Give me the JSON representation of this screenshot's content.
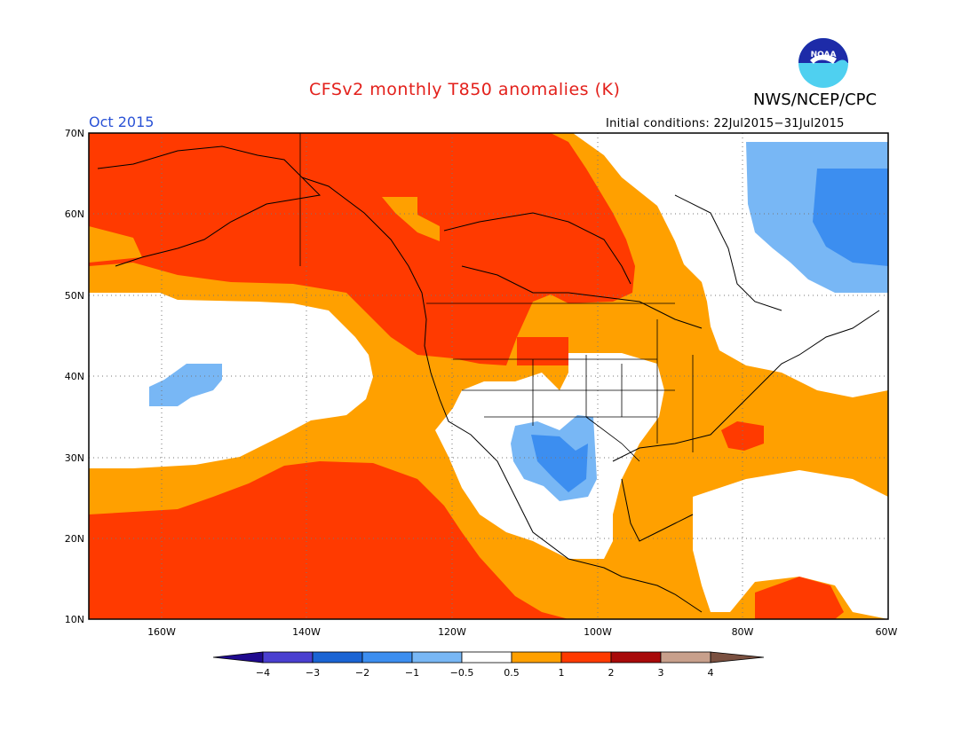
{
  "header": {
    "title": "CFSv2 monthly T850 anomalies (K)",
    "agency": "NWS/NCEP/CPC",
    "logo_text": "NOAA",
    "valid_month": "Oct 2015",
    "initial_conditions": "Initial conditions: 22Jul2015−31Jul2015"
  },
  "axes": {
    "lat_labels": [
      "70N",
      "60N",
      "50N",
      "40N",
      "30N",
      "20N",
      "10N"
    ],
    "lon_labels": [
      "160W",
      "140W",
      "120W",
      "100W",
      "80W",
      "60W"
    ]
  },
  "colorbar": {
    "labels": [
      "−4",
      "−3",
      "−2",
      "−1",
      "−0.5",
      "0.5",
      "1",
      "2",
      "3",
      "4"
    ],
    "colors": {
      "below_-4": "#1f0a8e",
      "-4_-3": "#4a3fd0",
      "-3_-2": "#1a64d4",
      "-2_-1": "#3c8ef0",
      "-1_-0.5": "#78b7f5",
      "-0.5_0.5": "#ffffff",
      "0.5_1": "#ffa000",
      "1_2": "#ff3a00",
      "2_3": "#a80a0a",
      "3_4": "#c8a08c",
      "above_4": "#7a5040"
    }
  },
  "map": {
    "projection": "lat-lon",
    "lon_range": [
      "170W",
      "60W"
    ],
    "lat_range": [
      "10N",
      "70N"
    ],
    "grid": "dotted every 20 deg lon, 10 deg lat",
    "background_class": "0.5_1"
  }
}
